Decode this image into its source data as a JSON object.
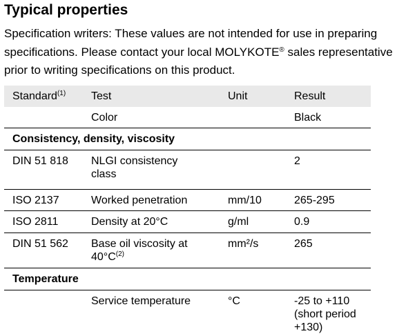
{
  "title": "Typical properties",
  "intro": {
    "before": "Specification writers: These values are not intended for use in preparing specifications. Please contact your local MOLYKOTE",
    "mark": "®",
    "after": " sales representative prior to writing specifications on this product."
  },
  "table": {
    "header": {
      "standard": "Standard",
      "standard_note": "(1)",
      "test": "Test",
      "unit": "Unit",
      "result": "Result"
    },
    "rows": [
      {
        "test": "Color",
        "result": "Black"
      },
      {
        "section": "Consistency, density, viscosity"
      },
      {
        "standard": "DIN 51 818",
        "test": "NLGI consistency class",
        "result": "2"
      },
      {
        "standard": "ISO 2137",
        "test": "Worked penetration",
        "unit": "mm/10",
        "result": "265-295"
      },
      {
        "standard": "ISO 2811",
        "test": "Density at 20°C",
        "unit": "g/ml",
        "result": "0.9"
      },
      {
        "standard": "DIN 51 562",
        "test": "Base oil viscosity at 40°C",
        "test_note": "(2)",
        "unit": "mm²/s",
        "result": "265"
      },
      {
        "section": "Temperature"
      },
      {
        "test": "Service temperature",
        "unit": "°C",
        "result": "-25 to +110 (short period +130)"
      }
    ]
  }
}
